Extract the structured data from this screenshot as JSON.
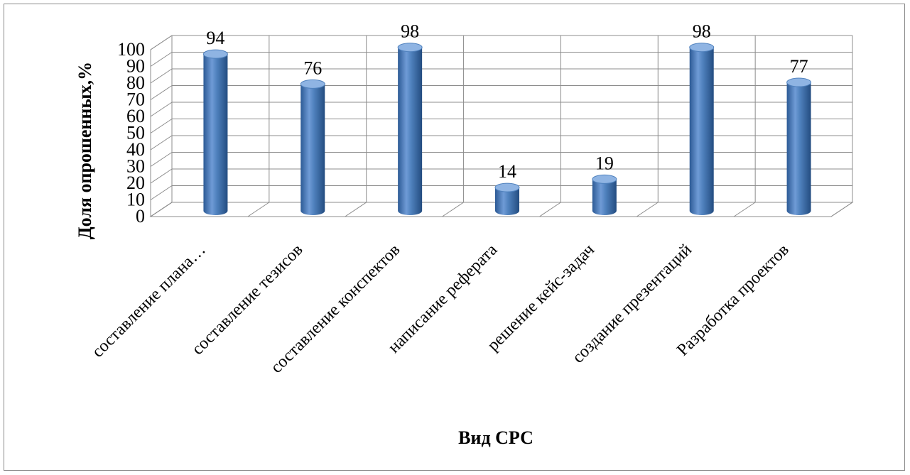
{
  "chart_data": {
    "type": "bar",
    "style": "3d-cylinder",
    "ylabel": "Доля опрошенных,%",
    "xlabel": "Вид СРС",
    "ylim": [
      0,
      100
    ],
    "yticks": [
      0,
      10,
      20,
      30,
      40,
      50,
      60,
      70,
      80,
      90,
      100
    ],
    "categories": [
      "составление плана…",
      "составление тезисов",
      "составление конспектов",
      "написание реферата",
      "решение кейс-задач",
      "создание презентаций",
      "Разработка проектов"
    ],
    "values": [
      94,
      76,
      98,
      14,
      19,
      98,
      77
    ],
    "data_labels": [
      "94",
      "76",
      "98",
      "14",
      "19",
      "98",
      "77"
    ],
    "grid": true,
    "legend": "none",
    "colors": {
      "bar": "#4f81bd",
      "bar_dark": "#2c5a95",
      "bar_light": "#8fb4e3",
      "grid": "#8c8c8c"
    }
  }
}
